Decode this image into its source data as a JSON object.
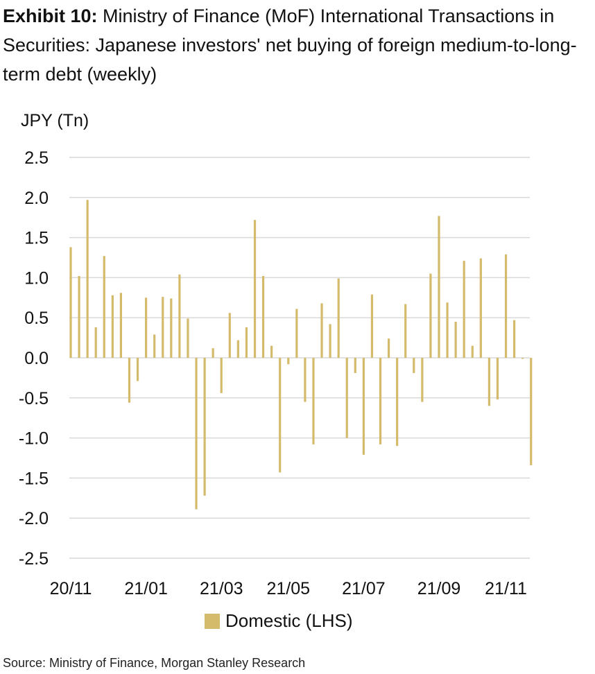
{
  "title_lead": "Exhibit 10:",
  "title_rest": "Ministry of Finance (MoF) International Transactions in Securities: Japanese investors' net buying of foreign medium-to-long-term debt (weekly)",
  "source": "Source: Ministry of Finance, Morgan Stanley Research",
  "chart_data": {
    "type": "bar",
    "ylabel": "JPY (Tn)",
    "ylim": [
      -2.5,
      2.5
    ],
    "yticks": [
      "2.5",
      "2.0",
      "1.5",
      "1.0",
      "0.5",
      "0.0",
      "-0.5",
      "-1.0",
      "-1.5",
      "-2.0",
      "-2.5"
    ],
    "ytick_values": [
      2.5,
      2.0,
      1.5,
      1.0,
      0.5,
      0.0,
      -0.5,
      -1.0,
      -1.5,
      -2.0,
      -2.5
    ],
    "xticks": [
      "20/11",
      "21/01",
      "21/03",
      "21/05",
      "21/07",
      "21/09",
      "21/11"
    ],
    "xtick_positions": [
      0,
      9,
      18,
      26,
      35,
      44,
      52
    ],
    "grid": "horizontal",
    "legend_position": "bottom",
    "bar_color": "#d4bb6c",
    "series": [
      {
        "name": "Domestic (LHS)",
        "values": [
          1.38,
          1.02,
          1.97,
          0.38,
          1.27,
          0.78,
          0.81,
          -0.56,
          -0.29,
          0.75,
          0.29,
          0.76,
          0.74,
          1.04,
          0.49,
          -1.89,
          -1.72,
          0.12,
          -0.44,
          0.56,
          0.22,
          0.38,
          1.72,
          1.02,
          0.15,
          -1.43,
          -0.08,
          0.61,
          -0.55,
          -1.08,
          0.68,
          0.42,
          0.99,
          -1.0,
          -0.19,
          -1.21,
          0.79,
          -1.08,
          0.24,
          -1.1,
          0.67,
          -0.19,
          -0.55,
          1.05,
          1.77,
          0.69,
          0.45,
          1.21,
          0.15,
          1.24,
          -0.6,
          -0.52,
          1.29,
          0.47,
          -0.01,
          -1.34
        ]
      }
    ]
  }
}
